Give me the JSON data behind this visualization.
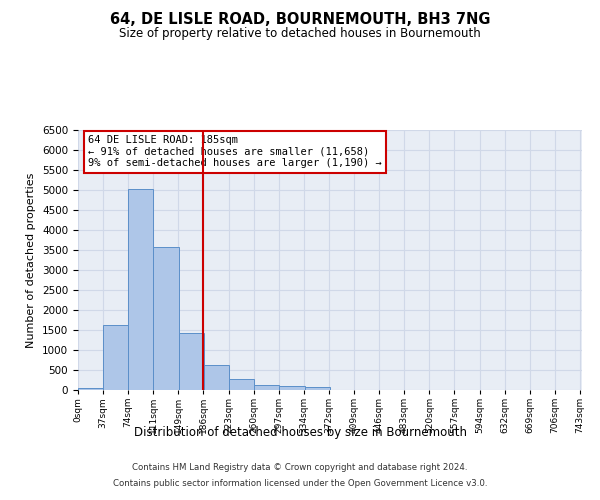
{
  "title": "64, DE LISLE ROAD, BOURNEMOUTH, BH3 7NG",
  "subtitle": "Size of property relative to detached houses in Bournemouth",
  "xlabel": "Distribution of detached houses by size in Bournemouth",
  "ylabel": "Number of detached properties",
  "footer_line1": "Contains HM Land Registry data © Crown copyright and database right 2024.",
  "footer_line2": "Contains public sector information licensed under the Open Government Licence v3.0.",
  "annotation_title": "64 DE LISLE ROAD: 185sqm",
  "annotation_line2": "← 91% of detached houses are smaller (11,658)",
  "annotation_line3": "9% of semi-detached houses are larger (1,190) →",
  "property_size_sqm": 185,
  "bar_left_edges": [
    0,
    37,
    74,
    111,
    149,
    186,
    223,
    260,
    297,
    334,
    372,
    409,
    446,
    483,
    520,
    557,
    594,
    632,
    669,
    706
  ],
  "bar_widths": [
    37,
    37,
    37,
    38,
    37,
    37,
    37,
    37,
    37,
    38,
    37,
    37,
    37,
    37,
    37,
    37,
    38,
    37,
    37,
    37
  ],
  "bar_heights": [
    60,
    1620,
    5030,
    3580,
    1420,
    620,
    280,
    130,
    100,
    70,
    0,
    0,
    0,
    0,
    0,
    0,
    0,
    0,
    0,
    0
  ],
  "bar_color": "#aec6e8",
  "bar_edge_color": "#5b8fc9",
  "vline_x": 185,
  "vline_color": "#cc0000",
  "annotation_box_color": "#cc0000",
  "grid_color": "#d0d8e8",
  "bg_color": "#e8edf5",
  "ylim": [
    0,
    6500
  ],
  "yticks": [
    0,
    500,
    1000,
    1500,
    2000,
    2500,
    3000,
    3500,
    4000,
    4500,
    5000,
    5500,
    6000,
    6500
  ],
  "tick_labels": [
    "0sqm",
    "37sqm",
    "74sqm",
    "111sqm",
    "149sqm",
    "186sqm",
    "223sqm",
    "260sqm",
    "297sqm",
    "334sqm",
    "372sqm",
    "409sqm",
    "446sqm",
    "483sqm",
    "520sqm",
    "557sqm",
    "594sqm",
    "632sqm",
    "669sqm",
    "706sqm",
    "743sqm"
  ],
  "xlim_max": 743
}
